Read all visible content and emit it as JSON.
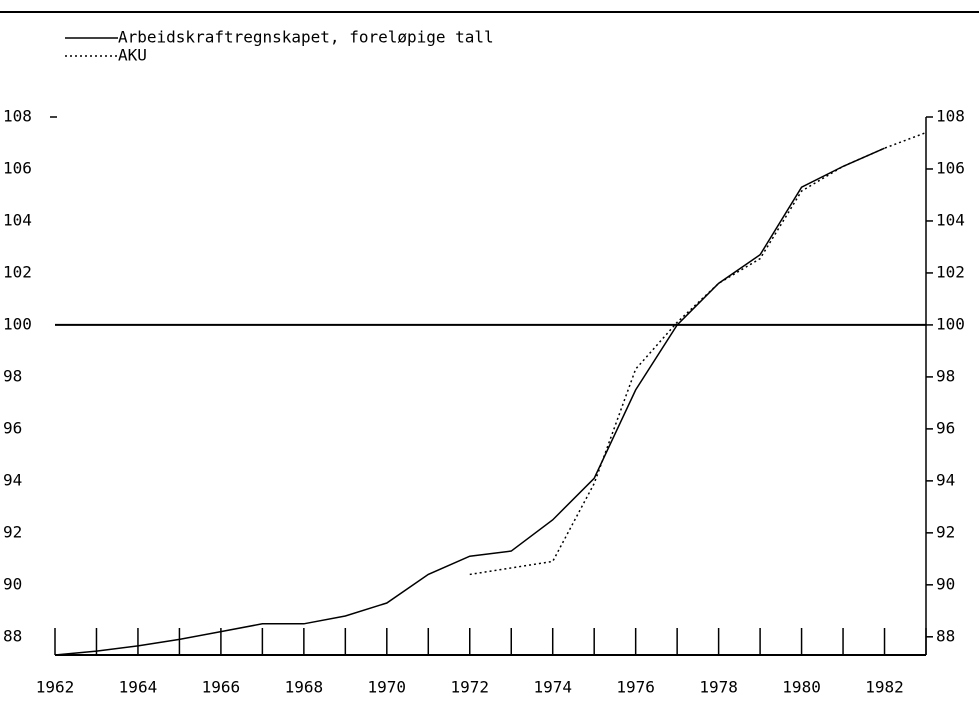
{
  "chart_data": {
    "type": "line",
    "x": [
      1962,
      1963,
      1964,
      1965,
      1966,
      1967,
      1968,
      1969,
      1970,
      1971,
      1972,
      1973,
      1974,
      1975,
      1976,
      1977,
      1978,
      1979,
      1980,
      1981,
      1982,
      1983
    ],
    "series": [
      {
        "name": "Arbeidskraftregnskapet, foreløpige tall",
        "color": "#000000",
        "dash": "solid",
        "values": [
          87.3,
          87.45,
          87.65,
          87.9,
          88.2,
          88.5,
          88.5,
          88.8,
          89.3,
          90.4,
          91.1,
          91.3,
          92.5,
          94.1,
          97.5,
          100,
          101.6,
          102.7,
          105.3,
          106.1,
          106.8,
          null
        ]
      },
      {
        "name": "AKU",
        "color": "#000000",
        "dash": "dotted",
        "values": [
          null,
          null,
          null,
          null,
          null,
          null,
          null,
          null,
          null,
          null,
          90.4,
          90.65,
          90.9,
          93.9,
          98.3,
          100.1,
          101.6,
          102.55,
          105.15,
          106.1,
          106.8,
          107.4
        ]
      }
    ],
    "xlim": [
      1962,
      1983
    ],
    "xticks": [
      1962,
      1964,
      1966,
      1968,
      1970,
      1972,
      1974,
      1976,
      1978,
      1980,
      1982
    ],
    "x_minor_ticks": [
      1962,
      1963,
      1964,
      1965,
      1966,
      1967,
      1968,
      1969,
      1970,
      1971,
      1972,
      1973,
      1974,
      1975,
      1976,
      1977,
      1978,
      1979,
      1980,
      1981,
      1982,
      1983
    ],
    "ylim": [
      87.3,
      108
    ],
    "yticks": [
      88,
      90,
      92,
      94,
      96,
      98,
      100,
      102,
      104,
      106,
      108
    ],
    "reference_line": 100,
    "right_axis_labels": true
  }
}
